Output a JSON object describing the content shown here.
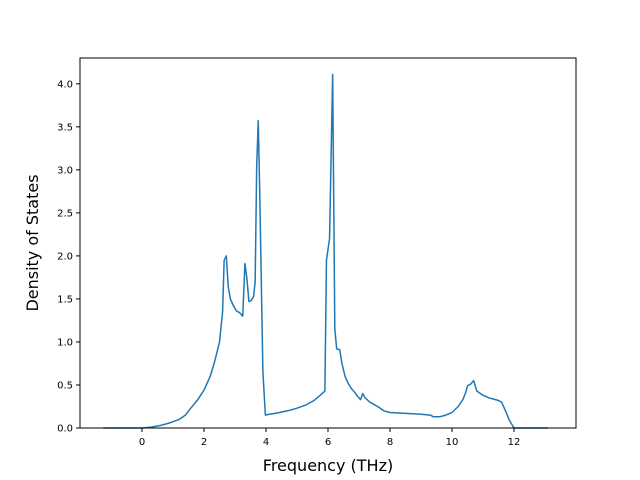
{
  "chart_data": {
    "type": "line",
    "title": "",
    "xlabel": "Frequency (THz)",
    "ylabel": "Density of States",
    "xlim": [
      -2.0,
      14.0
    ],
    "ylim": [
      0.0,
      4.3
    ],
    "xticks": [
      0,
      2,
      4,
      6,
      8,
      10,
      12
    ],
    "xtick_labels": [
      "0",
      "2",
      "4",
      "6",
      "8",
      "10",
      "12"
    ],
    "yticks": [
      0.0,
      0.5,
      1.0,
      1.5,
      2.0,
      2.5,
      3.0,
      3.5,
      4.0
    ],
    "ytick_labels": [
      "0.0",
      "0.5",
      "1.0",
      "1.5",
      "2.0",
      "2.5",
      "3.0",
      "3.5",
      "4.0"
    ],
    "grid": false,
    "series": [
      {
        "color": "#1f77b4",
        "x": [
          -1.25,
          0.0,
          0.3,
          0.6,
          0.9,
          1.2,
          1.4,
          1.55,
          1.8,
          2.0,
          2.2,
          2.35,
          2.5,
          2.6,
          2.65,
          2.72,
          2.78,
          2.85,
          2.95,
          3.05,
          3.15,
          3.25,
          3.32,
          3.38,
          3.45,
          3.52,
          3.6,
          3.65,
          3.7,
          3.75,
          3.8,
          3.9,
          3.98,
          4.1,
          4.3,
          4.7,
          5.0,
          5.3,
          5.55,
          5.75,
          5.9,
          5.95,
          6.05,
          6.15,
          6.22,
          6.28,
          6.38,
          6.45,
          6.55,
          6.65,
          6.75,
          6.85,
          6.95,
          7.05,
          7.12,
          7.2,
          7.35,
          7.6,
          7.8,
          8.0,
          8.5,
          9.0,
          9.3,
          9.4,
          9.6,
          9.8,
          10.0,
          10.2,
          10.35,
          10.45,
          10.5,
          10.6,
          10.7,
          10.8,
          11.0,
          11.2,
          11.5,
          11.6,
          11.75,
          11.85,
          12.0,
          13.1
        ],
        "y": [
          0.0,
          0.0,
          0.01,
          0.03,
          0.06,
          0.1,
          0.15,
          0.22,
          0.33,
          0.44,
          0.6,
          0.78,
          1.0,
          1.35,
          1.95,
          2.0,
          1.65,
          1.5,
          1.42,
          1.36,
          1.34,
          1.3,
          1.91,
          1.75,
          1.47,
          1.48,
          1.53,
          1.7,
          3.05,
          3.57,
          2.7,
          0.65,
          0.15,
          0.16,
          0.17,
          0.2,
          0.23,
          0.27,
          0.32,
          0.38,
          0.43,
          1.95,
          2.2,
          4.11,
          1.15,
          0.92,
          0.91,
          0.75,
          0.6,
          0.52,
          0.46,
          0.42,
          0.37,
          0.33,
          0.4,
          0.35,
          0.3,
          0.25,
          0.2,
          0.18,
          0.17,
          0.16,
          0.15,
          0.13,
          0.13,
          0.15,
          0.18,
          0.25,
          0.33,
          0.42,
          0.49,
          0.51,
          0.55,
          0.43,
          0.38,
          0.35,
          0.32,
          0.3,
          0.18,
          0.09,
          0.0,
          0.0
        ]
      }
    ]
  }
}
